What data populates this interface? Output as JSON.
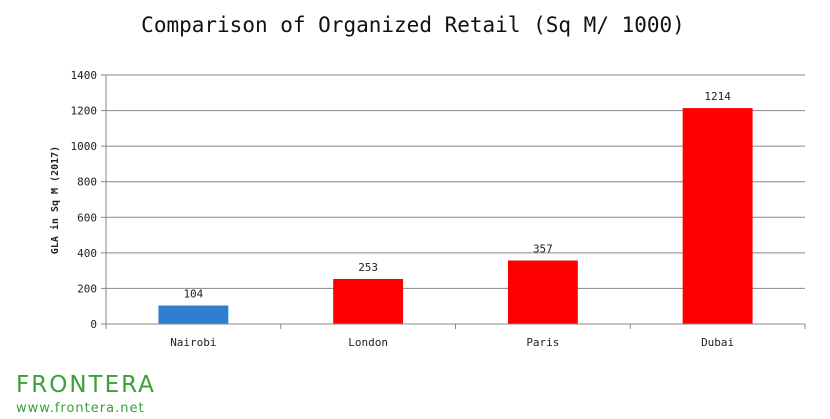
{
  "chart_data": {
    "type": "bar",
    "title": "Comparison of Organized Retail (Sq M/ 1000)",
    "xlabel": "",
    "ylabel": "GLA in Sq M (2017)",
    "categories": [
      "Nairobi",
      "London",
      "Paris",
      "Dubai"
    ],
    "values": [
      104,
      253,
      357,
      1214
    ],
    "data_labels": [
      "104",
      "253",
      "357",
      "1214"
    ],
    "bar_colors": [
      "#2e7fd0",
      "#ff0000",
      "#ff0000",
      "#ff0000"
    ],
    "ylim": [
      0,
      1400
    ],
    "yticks": [
      0,
      200,
      400,
      600,
      800,
      1000,
      1200,
      1400
    ],
    "grid": true,
    "legend": "none"
  },
  "branding": {
    "logo_text": "FRONTERA",
    "url": "www.frontera.net",
    "color": "#3aa037"
  }
}
